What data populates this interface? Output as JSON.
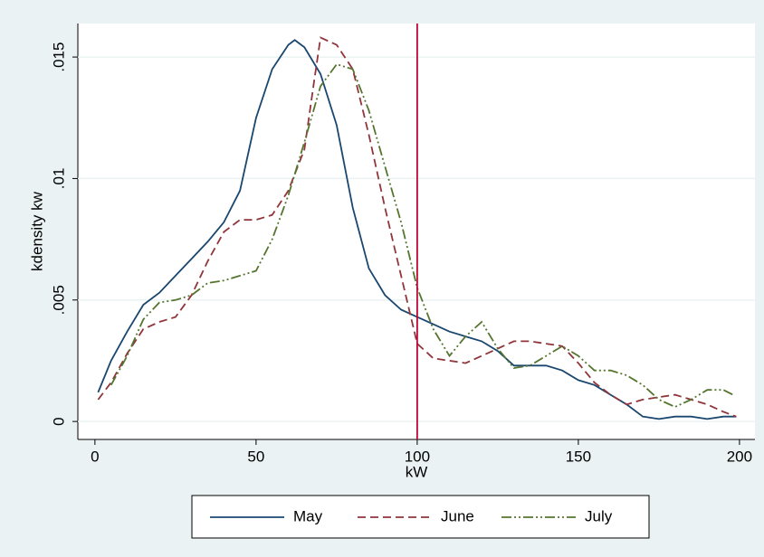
{
  "chart_data": {
    "type": "line",
    "xlabel": "kW",
    "ylabel": "kdensity kw",
    "xlim": [
      -5.3,
      204.8
    ],
    "ylim": [
      -0.00074,
      0.01638
    ],
    "xticks": [
      0,
      50,
      100,
      150,
      200
    ],
    "yticks": [
      0,
      {
        "value": 0.005,
        "label": ".005"
      },
      {
        "value": 0.01,
        "label": ".01"
      },
      {
        "value": 0.015,
        "label": ".015"
      }
    ],
    "grid": true,
    "legend": "bottom",
    "reference_line": {
      "x": 100,
      "color": "#c10534"
    },
    "series": [
      {
        "name": "May",
        "color": "#1a476f",
        "pattern": "solid",
        "x": [
          1,
          5,
          10,
          15,
          20,
          25,
          30,
          35,
          40,
          45,
          50,
          55,
          60,
          62,
          65,
          70,
          75,
          80,
          85,
          90,
          95,
          100,
          105,
          110,
          115,
          120,
          125,
          130,
          135,
          140,
          145,
          150,
          155,
          160,
          165,
          170,
          175,
          180,
          185,
          190,
          195,
          199
        ],
        "values": [
          0.0012,
          0.0025,
          0.0037,
          0.0048,
          0.0053,
          0.006,
          0.0067,
          0.0074,
          0.0082,
          0.0095,
          0.0125,
          0.0145,
          0.0155,
          0.0157,
          0.0154,
          0.0143,
          0.0122,
          0.0088,
          0.0063,
          0.0052,
          0.0046,
          0.0043,
          0.004,
          0.0037,
          0.0035,
          0.0033,
          0.0029,
          0.0023,
          0.0023,
          0.0023,
          0.0021,
          0.0017,
          0.0015,
          0.0011,
          0.0007,
          0.0002,
          0.0001,
          0.0002,
          0.0002,
          0.0001,
          0.0002,
          0.0002
        ]
      },
      {
        "name": "June",
        "color": "#90353b",
        "pattern": "dash",
        "x": [
          1,
          5,
          10,
          15,
          20,
          25,
          30,
          35,
          40,
          45,
          50,
          55,
          60,
          65,
          68,
          70,
          75,
          80,
          85,
          90,
          95,
          100,
          105,
          110,
          115,
          120,
          125,
          130,
          135,
          140,
          145,
          150,
          155,
          160,
          165,
          170,
          175,
          180,
          185,
          190,
          195,
          199
        ],
        "values": [
          0.0009,
          0.0016,
          0.0028,
          0.0038,
          0.0041,
          0.0043,
          0.0052,
          0.0066,
          0.0078,
          0.0083,
          0.0083,
          0.0085,
          0.0095,
          0.0112,
          0.014,
          0.0158,
          0.0155,
          0.0145,
          0.0118,
          0.0088,
          0.006,
          0.0032,
          0.0026,
          0.0025,
          0.0024,
          0.0027,
          0.003,
          0.0033,
          0.0033,
          0.0032,
          0.0031,
          0.0024,
          0.0016,
          0.0011,
          0.0007,
          0.0009,
          0.001,
          0.0011,
          0.0009,
          0.0007,
          0.0004,
          0.0002
        ]
      },
      {
        "name": "July",
        "color": "#55752f",
        "pattern": "dash-dot",
        "x": [
          5,
          10,
          15,
          20,
          25,
          30,
          35,
          40,
          45,
          50,
          55,
          60,
          65,
          70,
          75,
          80,
          85,
          90,
          95,
          100,
          105,
          110,
          115,
          120,
          125,
          130,
          135,
          140,
          145,
          150,
          155,
          160,
          165,
          170,
          175,
          180,
          185,
          190,
          195,
          198
        ],
        "values": [
          0.0015,
          0.0027,
          0.0042,
          0.0049,
          0.005,
          0.0052,
          0.0057,
          0.0058,
          0.006,
          0.0062,
          0.0075,
          0.0093,
          0.0115,
          0.0138,
          0.0147,
          0.0145,
          0.0128,
          0.0105,
          0.0082,
          0.0055,
          0.0038,
          0.0027,
          0.0035,
          0.0041,
          0.003,
          0.0022,
          0.0023,
          0.0027,
          0.0031,
          0.0027,
          0.0021,
          0.0021,
          0.0019,
          0.0015,
          0.0009,
          0.0006,
          0.0009,
          0.0013,
          0.0013,
          0.0011
        ]
      }
    ]
  }
}
